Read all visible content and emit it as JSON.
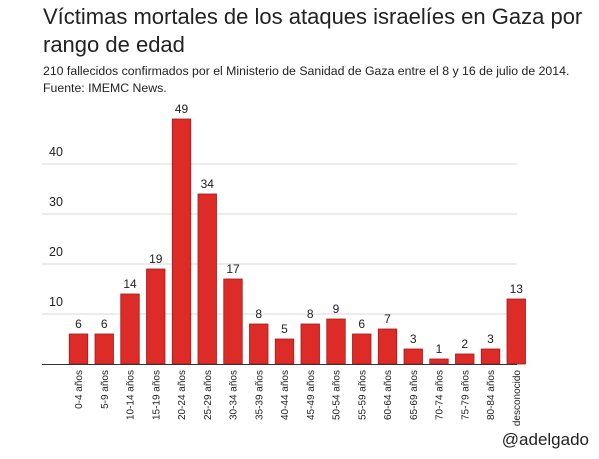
{
  "chart_data": {
    "type": "bar",
    "title": "Víctimas mortales de los ataques israelíes en Gaza por rango de edad",
    "subtitle": "210 fallecidos confirmados por el Ministerio de Sanidad de Gaza entre el 8 y 16 de julio de 2014. Fuente: IMEMC News.",
    "xlabel": "",
    "ylabel": "",
    "categories": [
      "0-4 años",
      "5-9 años",
      "10-14 años",
      "15-19 años",
      "20-24 años",
      "25-29 años",
      "30-34 años",
      "35-39 años",
      "40-44 años",
      "45-49 años",
      "50-54 años",
      "55-59 años",
      "60-64 años",
      "65-69 años",
      "70-74 años",
      "75-79 años",
      "80-84 años",
      "desconocido"
    ],
    "values": [
      6,
      6,
      14,
      19,
      49,
      34,
      17,
      8,
      5,
      8,
      9,
      6,
      7,
      3,
      1,
      2,
      3,
      13
    ],
    "ylim": [
      0,
      50
    ],
    "yticks": [
      10,
      20,
      30,
      40
    ],
    "grid": true,
    "data_labels": true,
    "bar_color": "#dd2c28"
  },
  "credit": "@adelgado"
}
